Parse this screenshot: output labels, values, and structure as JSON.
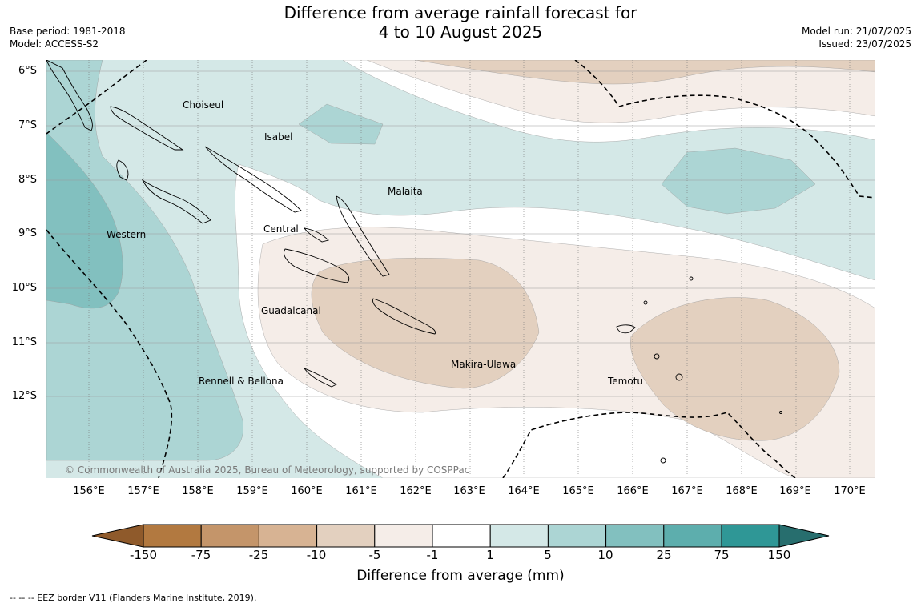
{
  "title": {
    "line1": "Difference from average rainfall forecast for",
    "line2": "4 to 10 August 2025"
  },
  "meta": {
    "base_period": "Base period: 1981-2018",
    "model": "Model: ACCESS-S2",
    "model_run": "Model run: 21/07/2025",
    "issued": "Issued: 23/07/2025"
  },
  "axes": {
    "lat_ticks": [
      "6°S",
      "7°S",
      "8°S",
      "9°S",
      "10°S",
      "11°S",
      "12°S"
    ],
    "lon_ticks": [
      "156°E",
      "157°E",
      "158°E",
      "159°E",
      "160°E",
      "161°E",
      "162°E",
      "163°E",
      "164°E",
      "165°E",
      "166°E",
      "167°E",
      "168°E",
      "169°E",
      "170°E"
    ]
  },
  "regions": [
    "Choiseul",
    "Isabel",
    "Malaita",
    "Western",
    "Central",
    "Guadalcanal",
    "Makira-Ulawa",
    "Rennell & Bellona",
    "Temotu"
  ],
  "copyright": "© Commonwealth of Australia 2025, Bureau of Meteorology, supported by COSPPac",
  "colorbar": {
    "labels": [
      "-150",
      "-75",
      "-25",
      "-10",
      "-5",
      "-1",
      "1",
      "5",
      "10",
      "25",
      "75",
      "150"
    ],
    "colors": [
      "#8f5a2b",
      "#b27940",
      "#c4956a",
      "#d7b393",
      "#e3d0bf",
      "#f5ede8",
      "#ffffff",
      "#d4e8e7",
      "#acd5d4",
      "#82c0bf",
      "#5daead",
      "#2f9796",
      "#276e6e"
    ],
    "title": "Difference from average (mm)"
  },
  "legend_note": "--  --  -- EEZ border V11 (Flanders Marine Institute, 2019)."
}
